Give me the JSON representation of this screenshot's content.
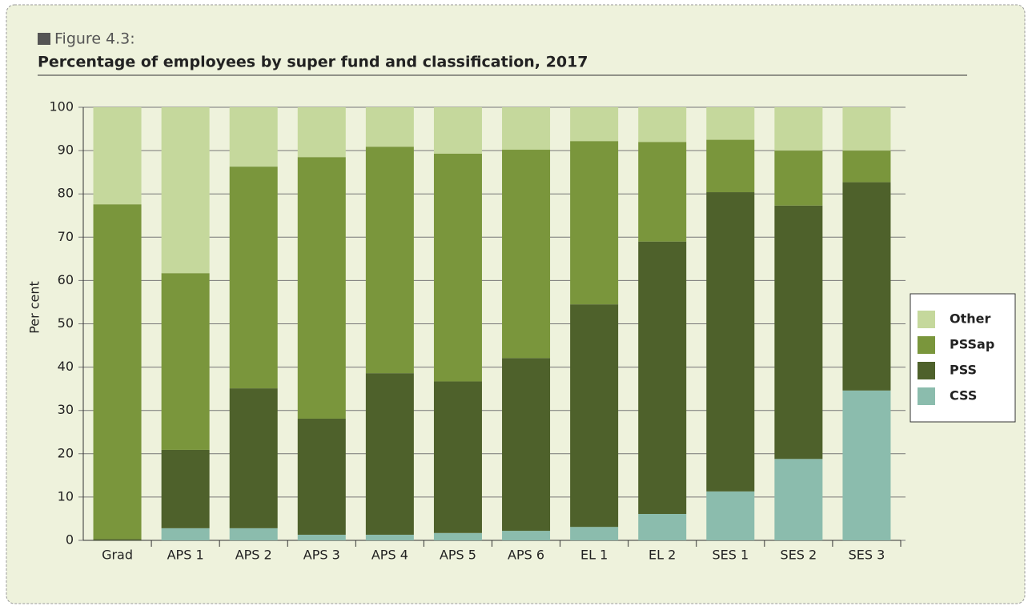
{
  "chart_data": {
    "type": "stacked_bar",
    "figure_label": "Figure 4.3:",
    "title": "Percentage of employees by super fund and classification, 2017",
    "y_label": "Per cent",
    "categories": [
      "Grad",
      "APS 1",
      "APS 2",
      "APS 3",
      "APS 4",
      "APS 5",
      "APS 6",
      "EL 1",
      "EL 2",
      "SES 1",
      "SES 2",
      "SES 3"
    ],
    "series": [
      {
        "name": "CSS",
        "color": "#8bbcad",
        "values": [
          0,
          2.8,
          2.8,
          1.3,
          1.3,
          1.7,
          2.2,
          3.1,
          6.1,
          11.3,
          18.8,
          34.6
        ]
      },
      {
        "name": "PSS",
        "color": "#4e612b",
        "values": [
          0.3,
          18.1,
          32.3,
          26.8,
          37.3,
          35,
          39.9,
          51.4,
          62.9,
          69.1,
          58.5,
          48.1
        ]
      },
      {
        "name": "PSSap",
        "color": "#7a963c",
        "values": [
          77.3,
          40.8,
          51.2,
          60.4,
          52.3,
          52.6,
          48.1,
          37.7,
          23,
          12.1,
          12.7,
          7.3
        ]
      },
      {
        "name": "Other",
        "color": "#c5d89c",
        "values": [
          22.4,
          38.3,
          13.7,
          11.5,
          9.1,
          10.7,
          9.8,
          7.8,
          8,
          7.5,
          10,
          10
        ]
      }
    ],
    "ylim": [
      0,
      100
    ],
    "yticks": [
      0,
      10,
      20,
      30,
      40,
      50,
      60,
      70,
      80,
      90,
      100
    ],
    "grid": true,
    "legend": "right"
  }
}
